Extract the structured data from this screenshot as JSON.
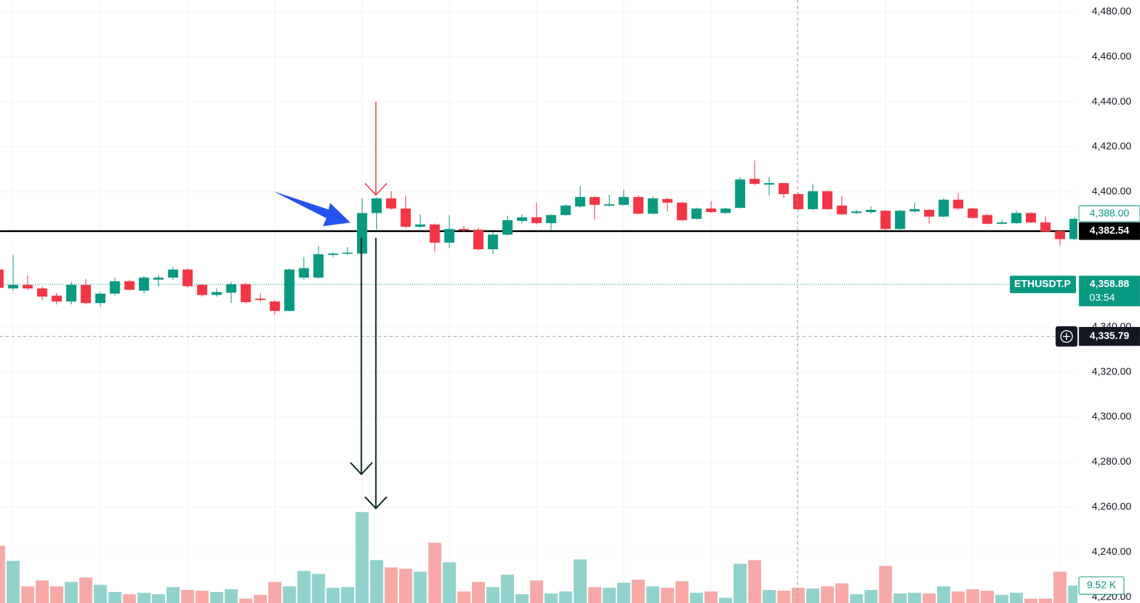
{
  "chart_data": {
    "type": "candlestick",
    "up_color": "#089981",
    "down_color": "#f23645",
    "up_volume_color": "#92d2cc",
    "down_volume_color": "#f7a9a7",
    "ylim": [
      4217.4,
      4485.2
    ],
    "yticks": [
      {
        "value": 4480,
        "label": "4,480.00"
      },
      {
        "value": 4460,
        "label": "4,460.00"
      },
      {
        "value": 4440,
        "label": "4,440.00"
      },
      {
        "value": 4420,
        "label": "4,420.00"
      },
      {
        "value": 4400,
        "label": "4,400.00"
      },
      {
        "value": 4340,
        "label": "4,340.00"
      },
      {
        "value": 4320,
        "label": "4,320.00"
      },
      {
        "value": 4300,
        "label": "4,300.00"
      },
      {
        "value": 4280,
        "label": "4,280.00"
      },
      {
        "value": 4260,
        "label": "4,260.00"
      },
      {
        "value": 4240,
        "label": "4,240.00"
      },
      {
        "value": 4220,
        "label": "4,220.00"
      }
    ],
    "grid": true,
    "volume_ylim": [
      0,
      100
    ],
    "open": [
      4365.5,
      4357.1,
      4358.7,
      4357.1,
      4353.9,
      4351.3,
      4358.7,
      4350.6,
      4354.8,
      4360.3,
      4356.1,
      4361.0,
      4361.9,
      4365.5,
      4358.7,
      4354.2,
      4355.2,
      4359.0,
      4352.6,
      4351.3,
      4347.1,
      4361.9,
      4361.9,
      4372.0,
      4372.6,
      4372.6,
      4390.6,
      4397.1,
      4392.6,
      4384.5,
      4385.5,
      4377.4,
      4383.5,
      4383.2,
      4374.5,
      4381.0,
      4387.1,
      4388.7,
      4386.1,
      4389.7,
      4393.5,
      4397.7,
      4393.9,
      4394.2,
      4397.7,
      4390.3,
      4396.8,
      4395.2,
      4388.0,
      4392.6,
      4390.6,
      4392.9,
      4405.8,
      4403.2,
      4403.9,
      4399.0,
      4392.3,
      4400.3,
      4393.9,
      4390.6,
      4391.0,
      4391.6,
      4383.5,
      4391.3,
      4392.0,
      4389.0,
      4396.5,
      4392.6,
      4389.7,
      4385.8,
      4386.1,
      4390.6,
      4386.4,
      4382.6,
      4379.0
    ],
    "high": [
      4366.0,
      4371.9,
      4362.9,
      4358.0,
      4355.0,
      4360.0,
      4361.3,
      4355.5,
      4361.9,
      4361.0,
      4362.5,
      4363.0,
      4366.5,
      4366.0,
      4359.0,
      4357.0,
      4360.0,
      4359.5,
      4355.0,
      4352.0,
      4366.0,
      4371.0,
      4376.0,
      4373.0,
      4375.5,
      4397.1,
      4397.5,
      4400.3,
      4398.4,
      4390.0,
      4386.0,
      4389.7,
      4385.0,
      4384.0,
      4382.0,
      4389.4,
      4390.0,
      4395.2,
      4390.0,
      4394.5,
      4402.6,
      4398.0,
      4398.7,
      4401.0,
      4398.5,
      4398.0,
      4397.5,
      4395.5,
      4393.0,
      4395.8,
      4393.0,
      4406.5,
      4413.9,
      4406.5,
      4404.0,
      4399.5,
      4403.5,
      4400.6,
      4398.4,
      4392.0,
      4393.5,
      4392.0,
      4392.0,
      4395.2,
      4392.5,
      4397.0,
      4399.4,
      4393.0,
      4390.3,
      4387.7,
      4391.6,
      4391.0,
      4389.0,
      4383.0,
      4389.0
    ],
    "low": [
      4357.0,
      4356.0,
      4356.5,
      4352.0,
      4350.0,
      4350.0,
      4350.0,
      4349.0,
      4354.0,
      4356.0,
      4354.8,
      4358.0,
      4361.0,
      4357.5,
      4353.5,
      4353.5,
      4350.6,
      4350.5,
      4351.0,
      4345.5,
      4347.0,
      4361.0,
      4361.5,
      4371.0,
      4372.0,
      4372.6,
      4383.2,
      4392.0,
      4384.0,
      4384.0,
      4373.5,
      4375.0,
      4382.0,
      4374.0,
      4372.3,
      4380.6,
      4386.0,
      4385.5,
      4383.2,
      4389.5,
      4393.0,
      4387.7,
      4393.5,
      4393.9,
      4390.0,
      4390.0,
      4391.3,
      4387.0,
      4387.7,
      4390.6,
      4390.3,
      4392.6,
      4403.0,
      4398.4,
      4397.1,
      4392.0,
      4392.0,
      4392.0,
      4389.7,
      4390.0,
      4390.3,
      4383.2,
      4383.2,
      4390.6,
      4385.8,
      4388.7,
      4392.0,
      4388.0,
      4385.5,
      4385.5,
      4385.8,
      4386.1,
      4382.0,
      4376.1,
      4378.6
    ],
    "close": [
      4357.4,
      4358.7,
      4357.1,
      4353.5,
      4351.3,
      4358.7,
      4350.6,
      4354.8,
      4360.3,
      4356.5,
      4361.9,
      4361.9,
      4365.5,
      4358.1,
      4354.2,
      4355.5,
      4359.0,
      4351.0,
      4352.0,
      4347.1,
      4365.5,
      4366.1,
      4372.3,
      4372.6,
      4373.0,
      4390.6,
      4397.1,
      4392.6,
      4384.5,
      4385.5,
      4377.4,
      4383.5,
      4382.9,
      4374.5,
      4381.0,
      4387.4,
      4388.7,
      4386.1,
      4389.7,
      4393.9,
      4397.7,
      4394.2,
      4394.5,
      4397.7,
      4390.3,
      4397.1,
      4395.2,
      4387.4,
      4392.6,
      4391.0,
      4392.6,
      4405.5,
      4403.5,
      4403.9,
      4399.0,
      4392.3,
      4400.3,
      4392.3,
      4390.0,
      4391.3,
      4392.0,
      4383.5,
      4391.6,
      4392.3,
      4389.0,
      4396.5,
      4392.6,
      4388.4,
      4385.8,
      4386.4,
      4390.6,
      4386.4,
      4382.3,
      4379.0,
      4388.0
    ],
    "volume": [
      31.3,
      23.0,
      9.1,
      12.3,
      9.1,
      11.5,
      13.9,
      9.9,
      6.0,
      4.8,
      5.6,
      4.8,
      8.7,
      7.1,
      6.7,
      6.0,
      7.5,
      2.4,
      4.4,
      11.5,
      9.1,
      17.5,
      15.9,
      8.3,
      8.7,
      49.6,
      23.4,
      19.4,
      18.7,
      17.1,
      32.9,
      22.2,
      6.3,
      11.5,
      8.7,
      15.5,
      4.8,
      12.3,
      5.2,
      6.3,
      23.8,
      8.7,
      8.3,
      11.1,
      12.7,
      9.1,
      8.3,
      11.9,
      5.6,
      6.3,
      2.8,
      21.4,
      23.4,
      7.1,
      6.7,
      8.3,
      7.9,
      9.1,
      10.7,
      4.8,
      7.1,
      20.2,
      5.2,
      5.6,
      5.2,
      9.1,
      6.3,
      7.5,
      6.7,
      4.4,
      5.6,
      2.4,
      2.4,
      17.1,
      9.52
    ],
    "last_volume_label": {
      "value": 9.52,
      "label": "9.52 K"
    },
    "price_labels": [
      {
        "value": 4388.0,
        "label": "4,388.00"
      },
      {
        "value": 4382.54,
        "label": "4,382.54"
      },
      {
        "value": 4358.88,
        "label": "4,358.88"
      },
      {
        "value": 4335.79,
        "label": "4,335.79"
      }
    ],
    "symbol": "ETHUSDT.P",
    "countdown": "03:54"
  }
}
